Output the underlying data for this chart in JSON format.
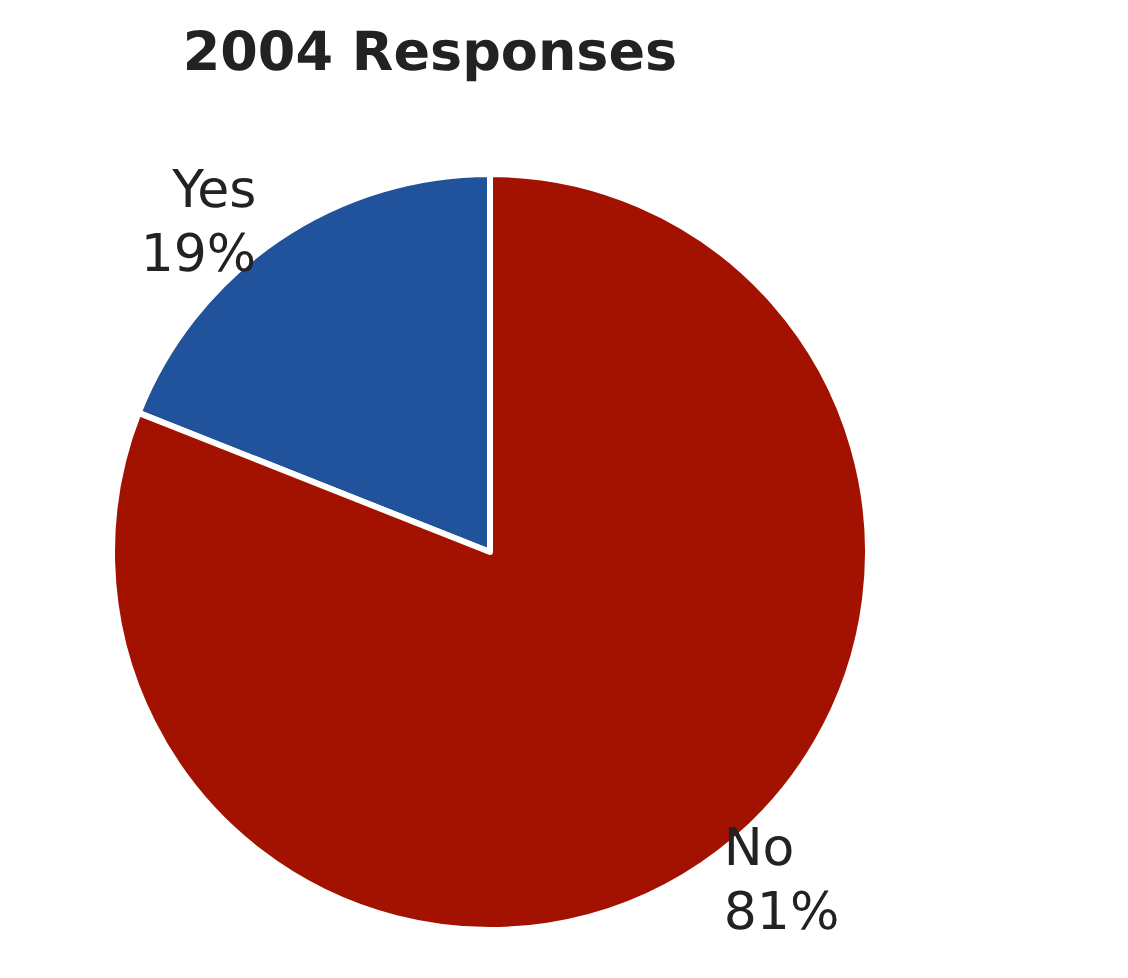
{
  "chart_data": {
    "type": "pie",
    "title": "2004 Responses",
    "categories": [
      "Yes",
      "No"
    ],
    "values": [
      19,
      81
    ],
    "value_labels": [
      "19%",
      "81%"
    ],
    "colors": [
      "#21539c",
      "#a31200"
    ],
    "legend": false
  }
}
